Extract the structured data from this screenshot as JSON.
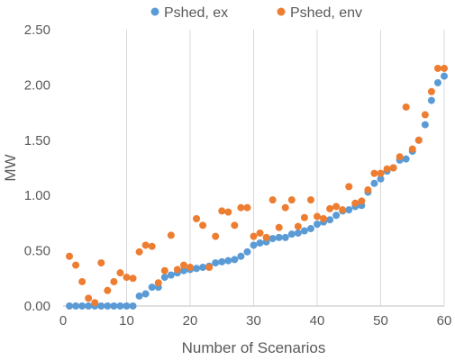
{
  "chart_data": {
    "type": "scatter",
    "title": "",
    "xlabel": "Number of Scenarios",
    "ylabel": "MW",
    "xlim": [
      0,
      60
    ],
    "ylim": [
      0,
      2.5
    ],
    "xticks": [
      0,
      10,
      20,
      30,
      40,
      50,
      60
    ],
    "yticks": [
      0,
      0.5,
      1.0,
      1.5,
      2.0,
      2.5
    ],
    "xtick_labels": [
      "0",
      "10",
      "20",
      "30",
      "40",
      "50",
      "60"
    ],
    "ytick_labels": [
      "0.00",
      "0.50",
      "1.00",
      "1.50",
      "2.00",
      "2.50"
    ],
    "grid": "vertical",
    "legend_position": "top",
    "series": [
      {
        "name": "Pshed, ex",
        "color": "#5B9BD5",
        "x": [
          1,
          2,
          3,
          4,
          5,
          6,
          7,
          8,
          9,
          10,
          11,
          12,
          13,
          14,
          15,
          16,
          17,
          18,
          19,
          20,
          21,
          22,
          23,
          24,
          25,
          26,
          27,
          28,
          29,
          30,
          31,
          32,
          33,
          34,
          35,
          36,
          37,
          38,
          39,
          40,
          41,
          42,
          43,
          44,
          45,
          46,
          47,
          48,
          49,
          50,
          51,
          52,
          53,
          54,
          55,
          56,
          57,
          58,
          59,
          60
        ],
        "y": [
          0,
          0,
          0,
          0,
          0,
          0,
          0,
          0,
          0,
          0,
          0,
          0.09,
          0.11,
          0.17,
          0.17,
          0.26,
          0.28,
          0.3,
          0.32,
          0.33,
          0.34,
          0.35,
          0.36,
          0.39,
          0.4,
          0.41,
          0.42,
          0.45,
          0.49,
          0.55,
          0.57,
          0.58,
          0.61,
          0.62,
          0.62,
          0.65,
          0.66,
          0.68,
          0.7,
          0.74,
          0.76,
          0.78,
          0.82,
          0.86,
          0.87,
          0.9,
          0.91,
          1.03,
          1.11,
          1.15,
          1.22,
          1.25,
          1.32,
          1.33,
          1.4,
          1.5,
          1.64,
          1.86,
          2.02,
          2.08
        ]
      },
      {
        "name": "Pshed, env",
        "color": "#ED7D31",
        "x": [
          1,
          2,
          3,
          4,
          5,
          6,
          7,
          8,
          9,
          10,
          11,
          12,
          13,
          14,
          15,
          16,
          17,
          18,
          19,
          20,
          21,
          22,
          23,
          24,
          25,
          26,
          27,
          28,
          29,
          30,
          31,
          32,
          33,
          34,
          35,
          36,
          37,
          38,
          39,
          40,
          41,
          42,
          43,
          44,
          45,
          46,
          47,
          48,
          49,
          50,
          51,
          52,
          53,
          54,
          55,
          56,
          57,
          58,
          59,
          60
        ],
        "y": [
          0.45,
          0.37,
          0.22,
          0.07,
          0.03,
          0.39,
          0.14,
          0.22,
          0.3,
          0.26,
          0.25,
          0.49,
          0.55,
          0.54,
          0.21,
          0.32,
          0.64,
          0.33,
          0.37,
          0.35,
          0.79,
          0.73,
          0.35,
          0.63,
          0.86,
          0.85,
          0.73,
          0.89,
          0.89,
          0.63,
          0.66,
          0.62,
          0.96,
          0.71,
          0.89,
          0.96,
          0.72,
          0.8,
          0.96,
          0.81,
          0.79,
          0.88,
          0.9,
          0.87,
          1.08,
          0.93,
          0.95,
          1.05,
          1.2,
          1.2,
          1.24,
          1.25,
          1.35,
          1.8,
          1.42,
          1.5,
          1.73,
          1.94,
          2.15,
          2.15
        ]
      }
    ]
  }
}
